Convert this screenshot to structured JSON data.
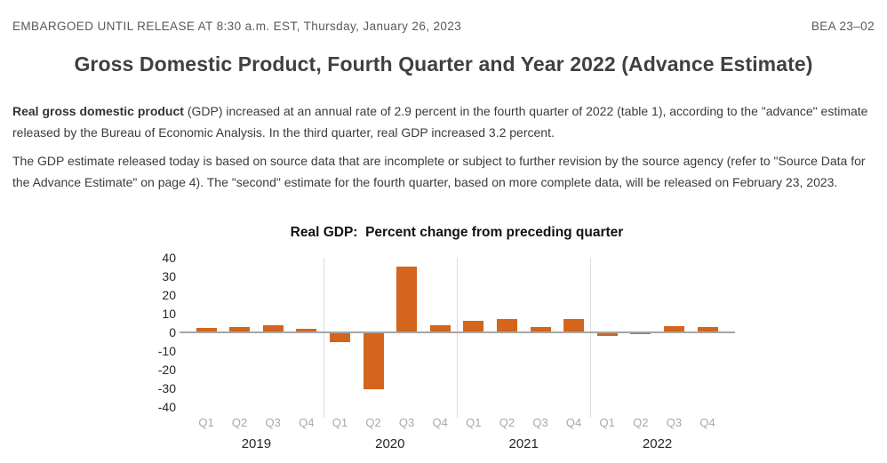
{
  "header": {
    "embargo": "EMBARGOED UNTIL RELEASE AT 8:30 a.m. EST, Thursday, January 26, 2023",
    "release_number": "BEA 23–02"
  },
  "title": "Gross Domestic Product, Fourth Quarter and Year 2022 (Advance Estimate)",
  "paragraphs": {
    "p1_bold": "Real gross domestic product",
    "p1_rest": " (GDP) increased at an annual rate of 2.9 percent in the fourth quarter of 2022 (table 1), according to the \"advance\" estimate released by the Bureau of Economic Analysis. In the third quarter, real GDP increased 3.2 percent.",
    "p2": "The GDP estimate released today is based on source data that are incomplete or subject to further revision by the source agency (refer to \"Source Data for the Advance Estimate\" on page 4). The \"second\" estimate for the fourth quarter, based on more complete data, will be released on February 23, 2023."
  },
  "chart_data": {
    "type": "bar",
    "title": "Real GDP:  Percent change from preceding quarter",
    "categories": [
      "Q1",
      "Q2",
      "Q3",
      "Q4",
      "Q1",
      "Q2",
      "Q3",
      "Q4",
      "Q1",
      "Q2",
      "Q3",
      "Q4",
      "Q1",
      "Q2",
      "Q3",
      "Q4"
    ],
    "year_groups": [
      "2019",
      "2020",
      "2021",
      "2022"
    ],
    "values": [
      2.2,
      2.7,
      3.6,
      1.8,
      -4.6,
      -29.9,
      35.3,
      3.9,
      6.3,
      7.0,
      2.7,
      7.0,
      -1.6,
      -0.6,
      3.2,
      2.9
    ],
    "yticks": [
      40,
      30,
      20,
      10,
      0,
      -10,
      -20,
      -30,
      -40
    ],
    "ylim": [
      -40,
      40
    ],
    "xlabel": "",
    "ylabel": "",
    "grid": false,
    "legend": false,
    "bar_color": "#d4651c",
    "axis_color": "#a6a6a6",
    "separator_color": "#dadada"
  }
}
